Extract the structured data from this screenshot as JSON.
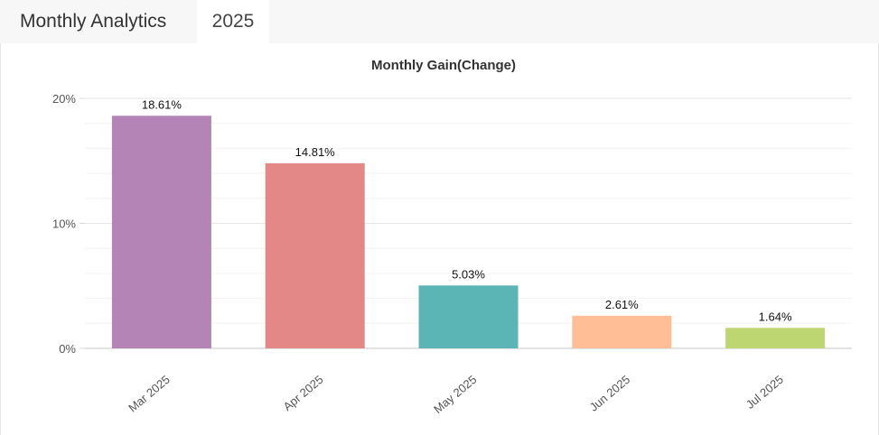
{
  "header": {
    "title": "Monthly Analytics",
    "year_tab": "2025"
  },
  "colors": {
    "bars": [
      "#b384b5",
      "#e38787",
      "#5bb5b5",
      "#ffbe96",
      "#bdd672"
    ],
    "grid": "#e6e6e6",
    "minor_grid": "#f3f3f3",
    "axis": "#d9d9d9"
  },
  "chart_data": {
    "type": "bar",
    "title": "Monthly Gain(Change)",
    "categories": [
      "Mar 2025",
      "Apr 2025",
      "May 2025",
      "Jun 2025",
      "Jul 2025"
    ],
    "values": [
      18.61,
      14.81,
      5.03,
      2.61,
      1.64
    ],
    "data_labels": [
      "18.61%",
      "14.81%",
      "5.03%",
      "2.61%",
      "1.64%"
    ],
    "y_ticks": [
      0,
      10,
      20
    ],
    "y_tick_labels": [
      "0%",
      "10%",
      "20%"
    ],
    "ylim": [
      0,
      20
    ],
    "xlabel": "",
    "ylabel": "",
    "grid": true,
    "legend": "none"
  }
}
